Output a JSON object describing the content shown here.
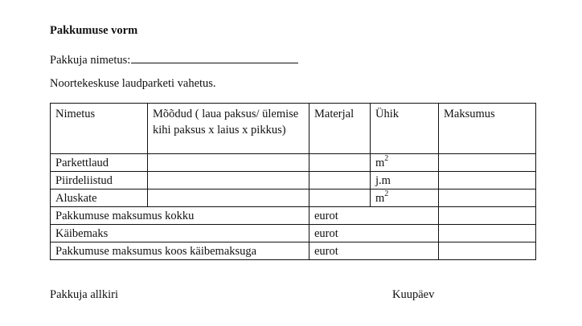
{
  "title": "Pakkumuse vorm",
  "bidder_label": "Pakkuja nimetus:",
  "subject": "Noortekeskuse laudparketi vahetus.",
  "table": {
    "headers": [
      "Nimetus",
      "Mõõdud ( laua paksus/ ülemise kihi paksus x laius x pikkus)",
      "Materjal",
      "Ühik",
      "Maksumus"
    ],
    "rows": [
      {
        "name": "Parkettlaud",
        "unit": "m",
        "unit_sup": "2"
      },
      {
        "name": "Piirdeliistud",
        "unit": "j.m",
        "unit_sup": ""
      },
      {
        "name": "Aluskate",
        "unit": "m",
        "unit_sup": "2"
      }
    ],
    "totals": [
      {
        "name": "Pakkumuse maksumus kokku",
        "unit": "eurot"
      },
      {
        "name": "Käibemaks",
        "unit": "eurot"
      },
      {
        "name": "Pakkumuse maksumus koos käibemaksuga",
        "unit": "eurot"
      }
    ]
  },
  "signature_label": "Pakkuja allkiri",
  "date_label": "Kuupäev"
}
